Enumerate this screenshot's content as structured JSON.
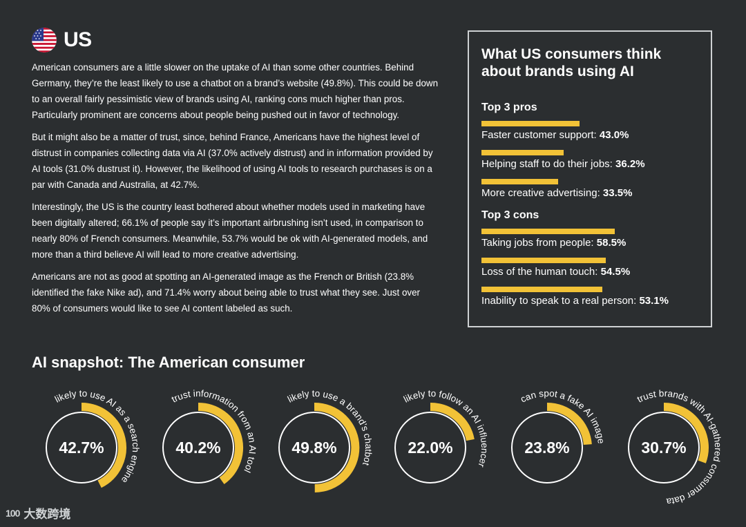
{
  "header": {
    "country": "US",
    "flag_icon": "us-flag-icon"
  },
  "paragraphs": [
    "American consumers are a little slower on the uptake of AI than some other countries. Behind Germany, they’re the least likely to use a chatbot on a brand’s website (49.8%). This could be down to an overall fairly pessimistic view of brands using AI, ranking cons much higher than pros. Particularly prominent are concerns about people being pushed out in favor of technology.",
    "But it might also be a matter of trust, since, behind France, Americans have the highest level of distrust in companies collecting data via AI (37.0% actively distrust) and in information provided by AI tools (31.0% dustrust it). However, the likelihood of using AI tools to research purchases is on a par with Canada and Australia, at 42.7%.",
    "Interestingly, the US is the country least bothered about whether models used in marketing have been digitally altered; 66.1% of people say it’s important airbrushing isn’t used, in comparison to nearly 80% of French consumers. Meanwhile, 53.7% would be ok with AI-generated models, and more than a third believe AI will lead to more creative advertising.",
    "Americans are not as good at spotting an AI-generated image as the French or British (23.8% identified the fake Nike ad), and 71.4% worry about being able to trust what they see. Just over 80% of consumers would like to see AI content labeled as such."
  ],
  "box": {
    "title": "What US consumers think about brands using AI",
    "pros_title": "Top 3 pros",
    "pros": [
      {
        "label": "Faster customer support: ",
        "value": "43.0%",
        "pct": 43.0
      },
      {
        "label": "Helping staff to do their jobs: ",
        "value": "36.2%",
        "pct": 36.2
      },
      {
        "label": "More creative advertising: ",
        "value": "33.5%",
        "pct": 33.5
      }
    ],
    "cons_title": "Top 3 cons",
    "cons": [
      {
        "label": "Taking jobs from people: ",
        "value": "58.5%",
        "pct": 58.5
      },
      {
        "label": "Loss of the human touch: ",
        "value": "54.5%",
        "pct": 54.5
      },
      {
        "label": "Inability to speak to a real person: ",
        "value": "53.1%",
        "pct": 53.1
      }
    ]
  },
  "snapshot": {
    "title": "AI snapshot: The American consumer",
    "items": [
      {
        "value": "42.7%",
        "pct": 42.7,
        "caption": "likely to use AI as a search engine"
      },
      {
        "value": "40.2%",
        "pct": 40.2,
        "caption": "trust information from an AI tool"
      },
      {
        "value": "49.8%",
        "pct": 49.8,
        "caption": "likely to use a brand’s chatbot"
      },
      {
        "value": "22.0%",
        "pct": 22.0,
        "caption": "likely to follow an AI influencer"
      },
      {
        "value": "23.8%",
        "pct": 23.8,
        "caption": "can spot a fake AI image"
      },
      {
        "value": "30.7%",
        "pct": 30.7,
        "caption": "trust brands with AI-gathered consumer data"
      }
    ]
  },
  "footer": {
    "logo_mark": "100",
    "logo_text": "大数跨境"
  },
  "colors": {
    "accent": "#f2c237",
    "background": "#2b2e30",
    "text": "#ffffff"
  }
}
